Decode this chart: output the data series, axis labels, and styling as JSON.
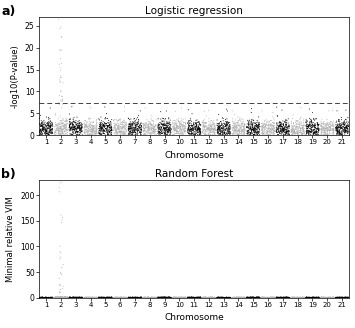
{
  "title_a": "Logistic regression",
  "title_b": "Random Forest",
  "xlabel": "Chromosome",
  "ylabel_a": "-log10(P-value)",
  "ylabel_b": "Minimal relative VIM",
  "label_a": "a)",
  "label_b": "b)",
  "chr_labels": [
    "1",
    "2",
    "3",
    "4",
    "5",
    "6",
    "7",
    "8",
    "9",
    "10",
    "11",
    "12",
    "13",
    "14",
    "15",
    "16",
    "17",
    "18",
    "19",
    "20",
    "21"
  ],
  "significance_line": 7.3,
  "ylim_a": [
    0,
    27
  ],
  "ylim_b": [
    0,
    230
  ],
  "yticks_a": [
    0,
    5,
    10,
    15,
    20,
    25
  ],
  "yticks_b": [
    0,
    50,
    100,
    150,
    200
  ],
  "color_odd": "#000000",
  "color_even": "#b0b0b0",
  "background": "#ffffff",
  "dashed_line_color": "#444444",
  "n_snps_per_chr": 200,
  "seed": 99,
  "highlight_chr_idx": 1
}
